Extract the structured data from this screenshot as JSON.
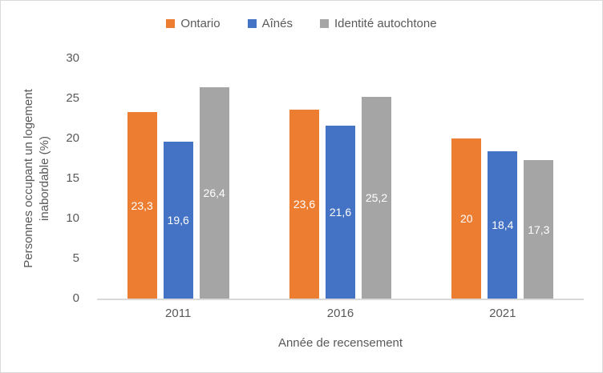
{
  "chart_data": {
    "type": "bar",
    "categories": [
      "2011",
      "2016",
      "2021"
    ],
    "series": [
      {
        "name": "Ontario",
        "color": "#ED7D31",
        "values": [
          23.3,
          23.6,
          20
        ],
        "labels": [
          "23,3",
          "23,6",
          "20"
        ]
      },
      {
        "name": "Aînés",
        "color": "#4472C4",
        "values": [
          19.6,
          21.6,
          18.4
        ],
        "labels": [
          "19,6",
          "21,6",
          "18,4"
        ]
      },
      {
        "name": "Identité autochtone",
        "color": "#A5A5A5",
        "values": [
          26.4,
          25.2,
          17.3
        ],
        "labels": [
          "26,4",
          "25,2",
          "17,3"
        ]
      }
    ],
    "xlabel": "Année de recensement",
    "ylabel": "Personnes occupant un logement inabordable (%)",
    "ylabel_lines": [
      "Personnes occupant un logement",
      "inabordable (%)"
    ],
    "ylim": [
      0,
      30
    ],
    "yticks": [
      0,
      5,
      10,
      15,
      20,
      25,
      30
    ],
    "grid": false,
    "legend_position": "top",
    "data_label_color": "#FFFFFF"
  },
  "colors": {
    "axis_line": "#D9D9D9",
    "text": "#595959",
    "background": "#FFFFFF",
    "frame_border": "#D9D9D9"
  }
}
